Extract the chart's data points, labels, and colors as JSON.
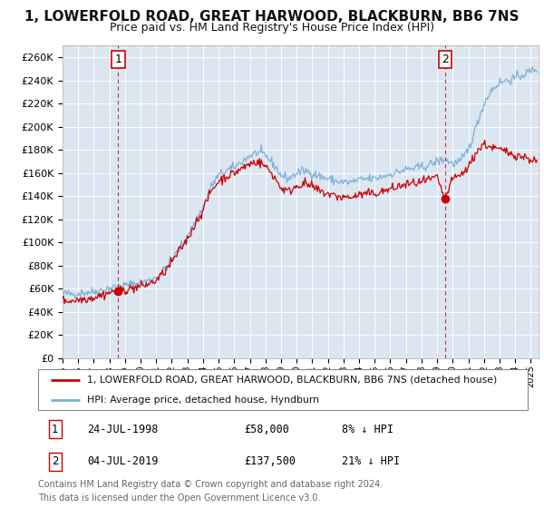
{
  "title": "1, LOWERFOLD ROAD, GREAT HARWOOD, BLACKBURN, BB6 7NS",
  "subtitle": "Price paid vs. HM Land Registry's House Price Index (HPI)",
  "ylabel_ticks": [
    "£0",
    "£20K",
    "£40K",
    "£60K",
    "£80K",
    "£100K",
    "£120K",
    "£140K",
    "£160K",
    "£180K",
    "£200K",
    "£220K",
    "£240K",
    "£260K"
  ],
  "ytick_values": [
    0,
    20000,
    40000,
    60000,
    80000,
    100000,
    120000,
    140000,
    160000,
    180000,
    200000,
    220000,
    240000,
    260000
  ],
  "ylim": [
    0,
    270000
  ],
  "xlim_start": 1995.0,
  "xlim_end": 2025.5,
  "legend_line1": "1, LOWERFOLD ROAD, GREAT HARWOOD, BLACKBURN, BB6 7NS (detached house)",
  "legend_line2": "HPI: Average price, detached house, Hyndburn",
  "line1_color": "#cc0000",
  "line2_color": "#7bafd4",
  "purchase1_x": 1998.57,
  "purchase1_y": 58000,
  "purchase1_label": "1",
  "purchase2_x": 2019.5,
  "purchase2_y": 137500,
  "purchase2_label": "2",
  "footnote1": "Contains HM Land Registry data © Crown copyright and database right 2024.",
  "footnote2": "This data is licensed under the Open Government Licence v3.0.",
  "table_row1": [
    "1",
    "24-JUL-1998",
    "£58,000",
    "8% ↓ HPI"
  ],
  "table_row2": [
    "2",
    "04-JUL-2019",
    "£137,500",
    "21% ↓ HPI"
  ],
  "bg_color": "#dce6f1",
  "grid_color": "#ffffff"
}
